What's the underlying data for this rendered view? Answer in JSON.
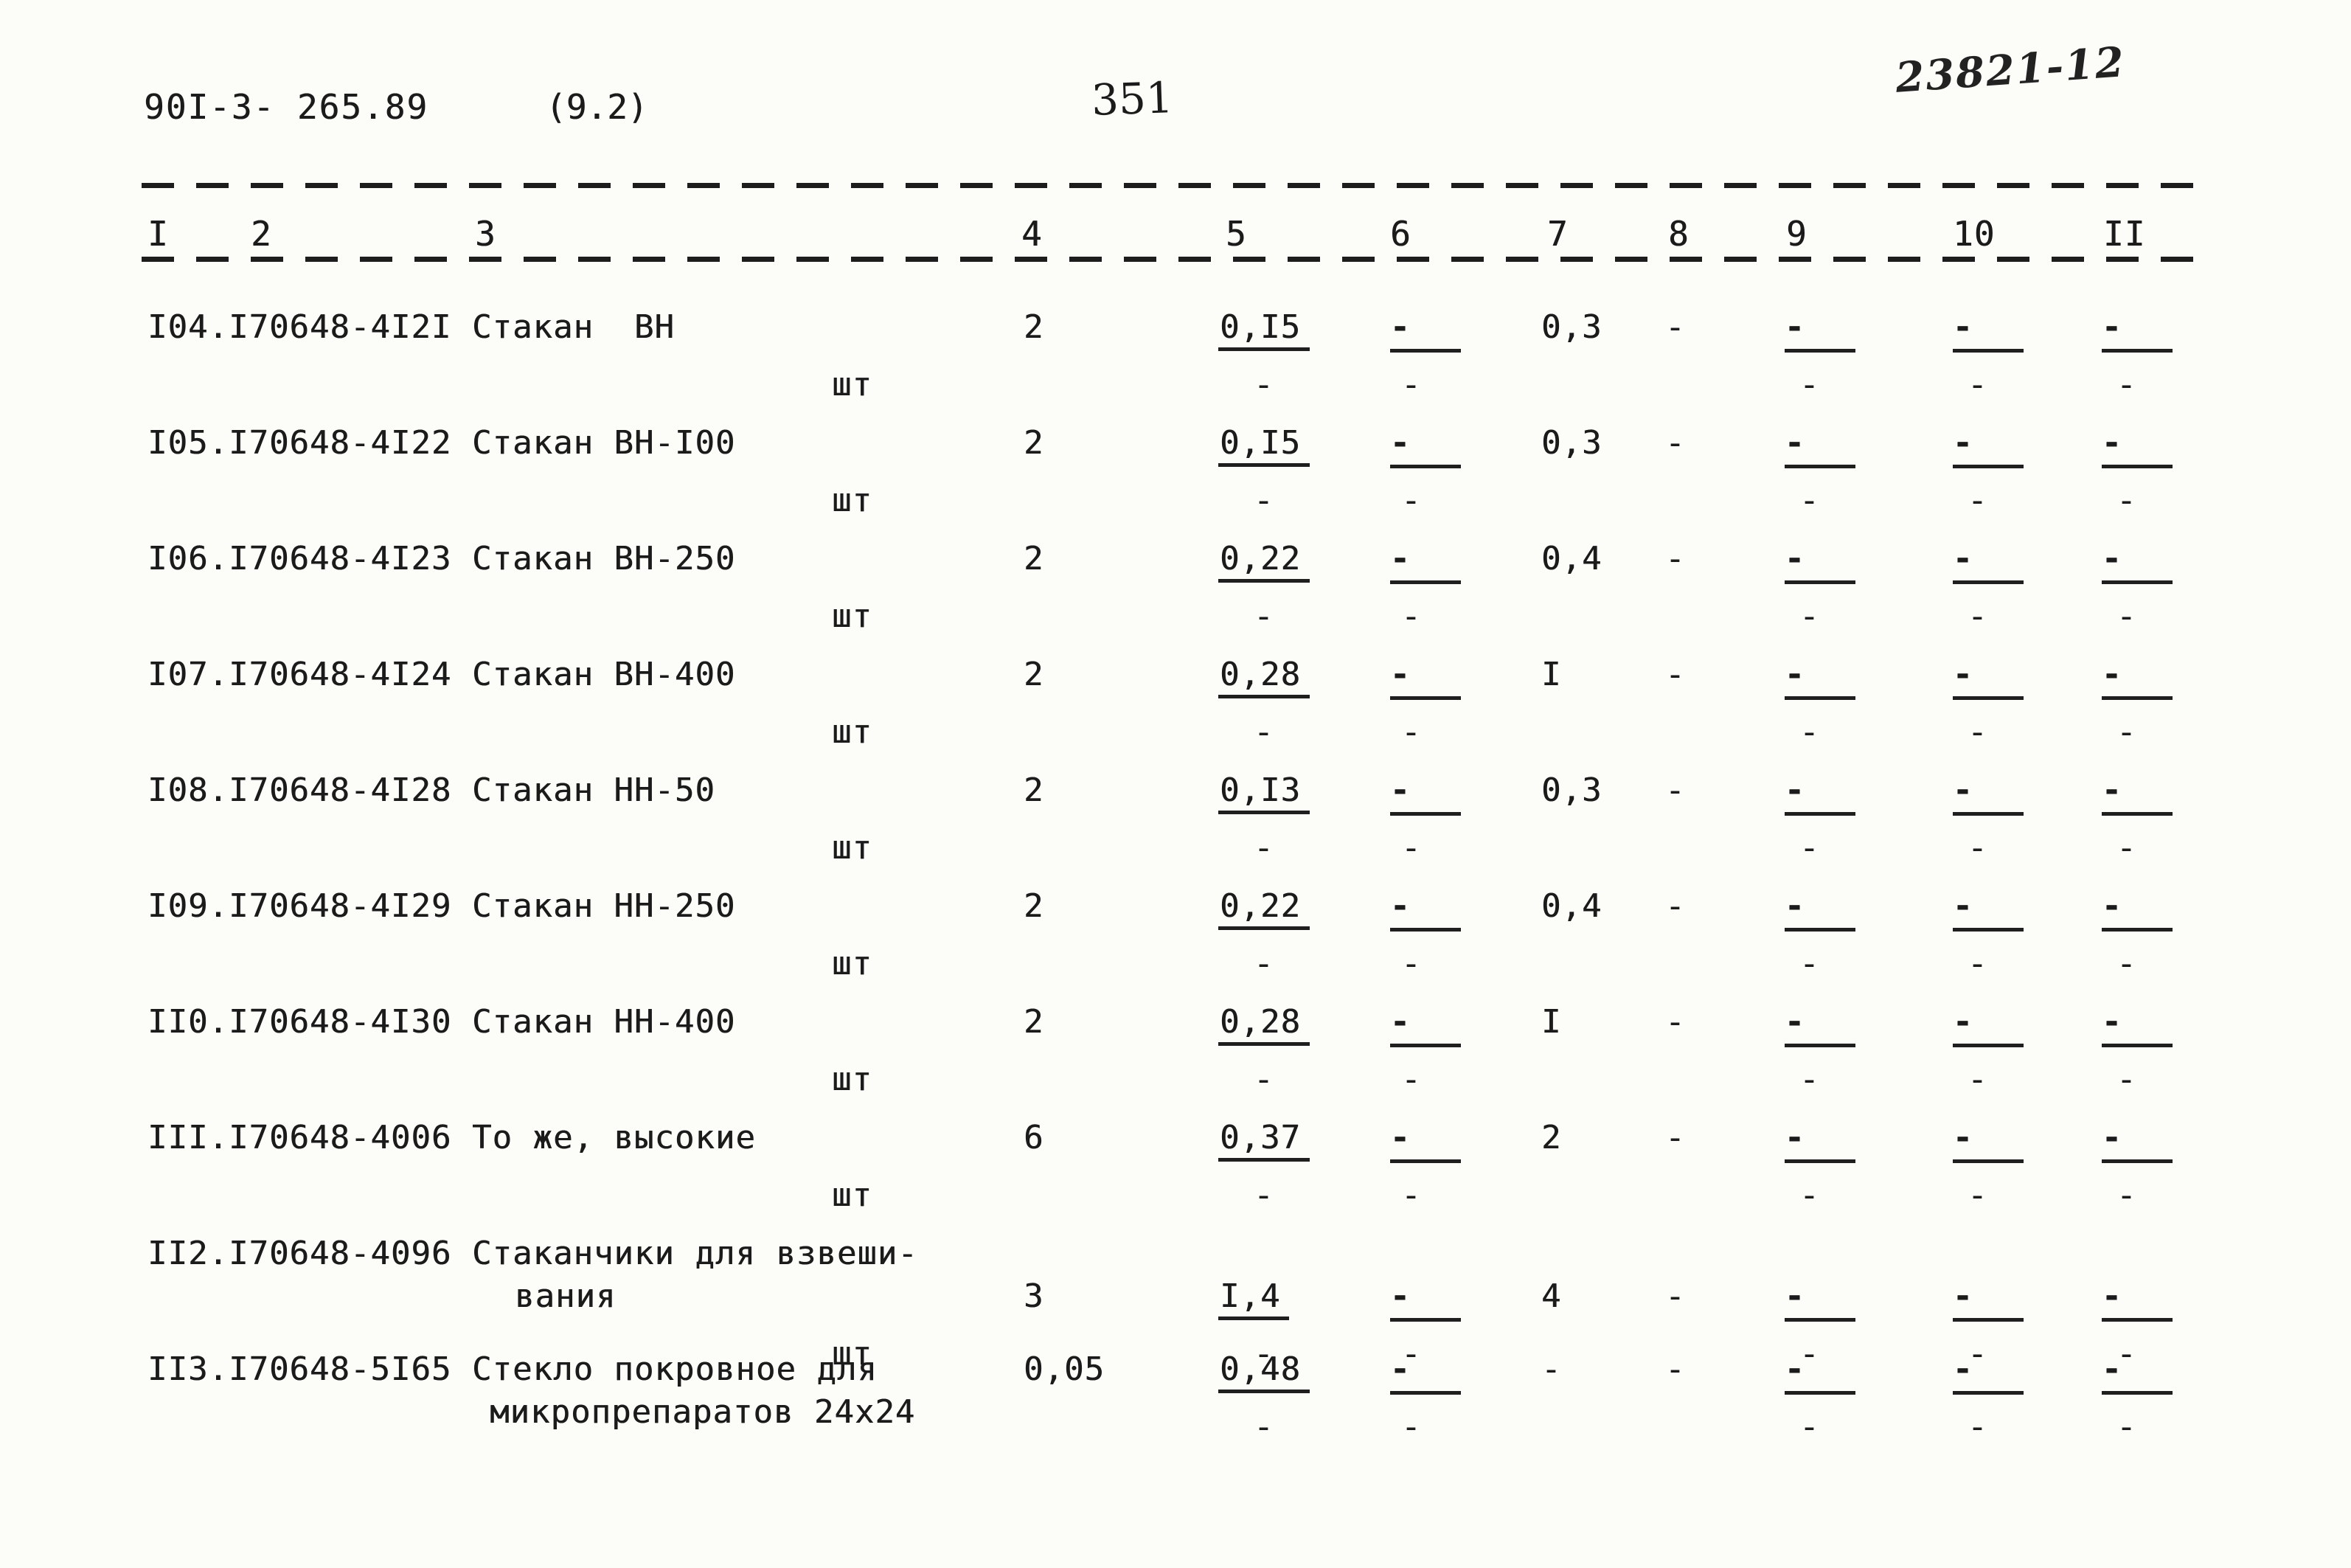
{
  "header": {
    "doc_number": "90I-3- 265.89",
    "sheet_ref": "(9.2)",
    "page_number": "351",
    "stamp": "23821-12"
  },
  "table": {
    "dash": "-",
    "columns": [
      "I",
      "2",
      "3",
      "4",
      "5",
      "6",
      "7",
      "8",
      "9",
      "10",
      "II"
    ],
    "rows": [
      {
        "code": "I04.I70648-4I2I",
        "name": "Стакан  ВН",
        "unit": "шт",
        "qty": "2",
        "mass": "0,I5",
        "norm": "0,3",
        "col8": "-"
      },
      {
        "code": "I05.I70648-4I22",
        "name": "Стакан ВН-I00",
        "unit": "шт",
        "qty": "2",
        "mass": "0,I5",
        "norm": "0,3",
        "col8": "-"
      },
      {
        "code": "I06.I70648-4I23",
        "name": "Стакан ВН-250",
        "unit": "шт",
        "qty": "2",
        "mass": "0,22",
        "norm": "0,4",
        "col8": "-"
      },
      {
        "code": "I07.I70648-4I24",
        "name": "Стакан ВН-400",
        "unit": "шт",
        "qty": "2",
        "mass": "0,28",
        "norm": "I",
        "col8": "-"
      },
      {
        "code": "I08.I70648-4I28",
        "name": "Стакан НН-50",
        "unit": "шт",
        "qty": "2",
        "mass": "0,I3",
        "norm": "0,3",
        "col8": "-"
      },
      {
        "code": "I09.I70648-4I29",
        "name": "Стакан НН-250",
        "unit": "шт",
        "qty": "2",
        "mass": "0,22",
        "norm": "0,4",
        "col8": "-"
      },
      {
        "code": "II0.I70648-4I30",
        "name": "Стакан НН-400",
        "unit": "шт",
        "qty": "2",
        "mass": "0,28",
        "norm": "I",
        "col8": "-"
      },
      {
        "code": "III.I70648-4006",
        "name": "То же, высокие",
        "unit": "шт",
        "qty": "6",
        "mass": "0,37",
        "norm": "2",
        "col8": "-"
      },
      {
        "code": "II2.I70648-4096",
        "name": "Стаканчики для взвеши-",
        "name2": "вания",
        "unit": "шт",
        "qty": "3",
        "mass": "I,4",
        "norm": "4",
        "col8": "-",
        "values_on_second_line": true
      },
      {
        "code": "II3.I70648-5I65",
        "name": "Стекло покровное для",
        "name2": "микропрепаратов 24х24",
        "qty": "0,05",
        "mass": "0,48",
        "norm": "-",
        "col8": "-"
      }
    ]
  }
}
